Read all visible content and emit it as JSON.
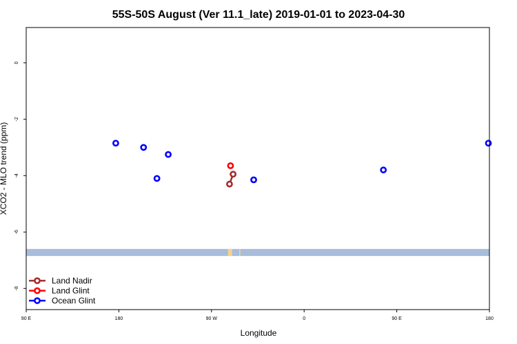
{
  "chart_data": {
    "type": "scatter",
    "title": "55S-50S August (Ver 11.1_late)   2019-01-01 to 2023-04-30",
    "xlabel": "Longitude",
    "ylabel": "XCO2 - MLO trend (ppm)",
    "xlim": [
      90,
      540
    ],
    "ylim": [
      -8.75,
      1.25
    ],
    "x_ticks": [
      {
        "value": 90,
        "label": "90 E"
      },
      {
        "value": 180,
        "label": "180"
      },
      {
        "value": 270,
        "label": "90 W"
      },
      {
        "value": 360,
        "label": "0"
      },
      {
        "value": 450,
        "label": "90 E"
      },
      {
        "value": 540,
        "label": "180"
      }
    ],
    "y_ticks": [
      {
        "value": 0,
        "label": "0"
      },
      {
        "value": -2,
        "label": "-2"
      },
      {
        "value": -4,
        "label": "-4"
      },
      {
        "value": -6,
        "label": "-6"
      },
      {
        "value": -8,
        "label": "-8"
      }
    ],
    "grid": false,
    "legend_position": "bottom-left",
    "series": [
      {
        "name": "Land Nadir",
        "color": "#a52a2a",
        "connected": true,
        "points": [
          {
            "x": 287.5,
            "y": -4.3
          },
          {
            "x": 291,
            "y": -3.95
          }
        ]
      },
      {
        "name": "Land Glint",
        "color": "#ff0000",
        "connected": false,
        "points": [
          {
            "x": 288.5,
            "y": -3.65
          }
        ]
      },
      {
        "name": "Ocean Glint",
        "color": "#0000ff",
        "connected": false,
        "points": [
          {
            "x": 177,
            "y": -2.85
          },
          {
            "x": 204,
            "y": -3.0
          },
          {
            "x": 217,
            "y": -4.1
          },
          {
            "x": 228,
            "y": -3.25
          },
          {
            "x": 311,
            "y": -4.15
          },
          {
            "x": 437,
            "y": -3.8
          },
          {
            "x": 539,
            "y": -2.85
          }
        ]
      }
    ],
    "land_band": {
      "y_range": [
        -6.85,
        -6.6
      ],
      "ocean_color": "#a8bddb",
      "land_color": "#f5d48a",
      "land_spans": [
        [
          286,
          290
        ],
        [
          297,
          298
        ]
      ]
    }
  }
}
